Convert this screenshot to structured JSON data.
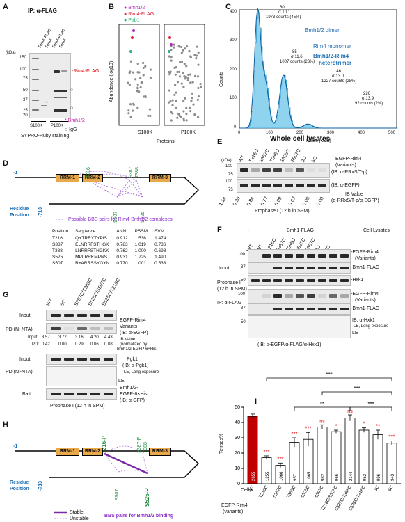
{
  "panels": {
    "A": {
      "label": "A",
      "title": "IP: α-FLAG",
      "kda_label": "(kDa)",
      "markers": [
        "150",
        "100",
        "75",
        "50",
        "37",
        "25",
        "20"
      ],
      "lane_labels": [
        "Rim4-FLAG",
        "Rim4",
        "Rim4-FLAG",
        "Rim4"
      ],
      "fractions": [
        "S100K",
        "P100K"
      ],
      "band_label": "-Rim4-FLAG",
      "legend_star": "* Bmh1/2",
      "legend_circle": "○ IgG",
      "stain": "SYPRO-Ruby staining"
    },
    "B": {
      "label": "B",
      "legend": [
        "Bmh1/2",
        "Rim4-FLAG",
        "Pab1"
      ],
      "legend_colors": [
        "#b22ab4",
        "#e0243a",
        "#2bb673"
      ],
      "ylabel": "Abundance (log10)",
      "xlabel": "Proteins",
      "fractions": [
        "S100K",
        "P100K"
      ]
    },
    "C": {
      "label": "C",
      "xlabel": "Mass [kDa]",
      "ylabel": "Counts",
      "yticks": [
        "0",
        "100",
        "200",
        "300",
        "400"
      ],
      "xticks": [
        "0",
        "100",
        "200",
        "300",
        "400",
        "500"
      ],
      "annotations": {
        "dimer": "Bmh1/2 dimer",
        "monomer": "Rim4 monomer",
        "hetero1": "Bmh1/2-Rim4",
        "hetero2": "heterotrimer",
        "peak1": [
          "60",
          "σ 10.1",
          "1973 counts (45%)"
        ],
        "peak2": [
          "85",
          "σ 11.6",
          "1007 counts (23%)"
        ],
        "peak3": [
          "146",
          "σ 13.0",
          "1227 counts (28%)"
        ],
        "peak4": [
          "226",
          "σ 13.9",
          "92 counts (2%)"
        ]
      }
    },
    "D": {
      "label": "D",
      "domains": [
        "RRM-1",
        "RRM-2",
        "RRM-3"
      ],
      "sites_top": [
        "T216",
        "S387",
        "T388"
      ],
      "sites_bottom": [
        "S507",
        "S525"
      ],
      "start": "1",
      "end": "713",
      "residue": "Residue",
      "position": "Position",
      "legend": "Possible BBS pairs for Rim4-Bmh1/2 complexes",
      "table_headers": [
        "Position",
        "Sequence",
        "ANN",
        "PSSM",
        "SVM"
      ],
      "table_rows": [
        [
          "T216",
          "QYTRRYTYPIS",
          "0.912",
          "1.536",
          "1.474"
        ],
        [
          "S387",
          "ELNRRFSTHGK",
          "0.783",
          "1.019",
          "0.736"
        ],
        [
          "T388",
          "LNRRFSTHGKK",
          "0.762",
          "1.000",
          "0.698"
        ],
        [
          "S525",
          "MPLRRKMPNS",
          "0.931",
          "1.725",
          "1.490"
        ],
        [
          "S507",
          "RYARRSSYGYN",
          "0.770",
          "1.001",
          "0.533"
        ]
      ]
    },
    "E": {
      "label": "E",
      "title": "Whole cell lysates",
      "lanes": [
        "WT",
        "T216C",
        "S387C",
        "T388C",
        "S525C",
        "S507C",
        "3C",
        "5C"
      ],
      "right_label1": "EGFP-Rim4",
      "right_label2": "(Variants)",
      "ib1": "(IB: α-RRxS/T-p)",
      "ib2": "(IB: α-EGFP)",
      "values": [
        "1.14",
        "0.30",
        "0.84",
        "0.77",
        "0.09",
        "0.67",
        "0.00",
        "0.00"
      ],
      "ib_value": "IB Value",
      "ib_value_sub": "(α-RRxS/T-p/α-EGFP)",
      "condition": "Prophase I (12 h in SPM)",
      "markers": [
        "100",
        "75",
        "100",
        "75"
      ],
      "kda": "(kDa)"
    },
    "F": {
      "label": "F",
      "header": "Bmh1-FLAG",
      "dash": "-",
      "lanes": [
        "WT",
        "WT",
        "T216C",
        "S387C",
        "T388C",
        "S525C",
        "S507C",
        "3C",
        "5C"
      ],
      "cell_lysates": "Cell Lysates",
      "input": "Input:",
      "condition1": "Prophase I",
      "condition2": "(12 h in SPM)",
      "ip": "IP: α-FLAG",
      "labels": [
        "-EGFP-Rim4",
        "(Variants)",
        "-Bmh1-FLAG",
        "-Hxk1",
        "-EGFP-Rim4",
        "(Variants)",
        "-Bmh1-FLAG",
        "IB: α-Hxk1",
        "LE, Long exposure",
        "LE"
      ],
      "footer": "(IB: α-EGFP/α-FLAG/α-Hxk1)",
      "markers": [
        "100",
        "37",
        "50",
        "100",
        "37",
        "50"
      ]
    },
    "G": {
      "label": "G",
      "lanes": [
        "WT",
        "5C",
        "S387C/T388C",
        "S525C/S507C",
        "S525C/T216C"
      ],
      "input": "Input:",
      "pd": "PD (Ni-NTA):",
      "input_vals": [
        "3.57",
        "3.72",
        "3.16",
        "4.20",
        "4.43"
      ],
      "pd_vals": [
        "0.42",
        "0.00",
        "0.29",
        "0.06",
        "0.08"
      ],
      "ib_value": "IB Value",
      "normalized": "(normalized by",
      "normalized2": "Bmh1/2-EGFP-6×His)",
      "rim4": "EGFP-Rim4",
      "variants": "Variants",
      "ib_egfp": "(IB: α-EGFP)",
      "pgk1": "Pgk1",
      "ib_pgk1": "(IB: α-Pgk1)",
      "le": "LE",
      "le_long": "LE, Long exposure",
      "bait": "Bait:",
      "bait_label1": "Bmh1/2-",
      "bait_label2": "EGFP-6×His",
      "ib_gfp": "(IB: α-GFP)",
      "condition": "Prophase I (12 h in SPM)",
      "input_short": "Input:",
      "pd_short": "PD:"
    },
    "H": {
      "label": "H",
      "domains": [
        "RRM-1",
        "RRM-2",
        "RRM-3"
      ],
      "sites": [
        "T216-P",
        "S387-P",
        "T388",
        "S507",
        "S525-P"
      ],
      "start": "1",
      "end": "713",
      "residue": "Residue",
      "position": "Position",
      "stable": "Stable",
      "unstable": "Unstable",
      "legend": "BBS pairs for Bmh1/2 binding"
    },
    "I": {
      "label": "I",
      "ylabel": "Tetrads%",
      "yticks": [
        "0",
        "10",
        "20",
        "30",
        "40",
        "50"
      ],
      "cell_label": "Cell #",
      "strain_label": "EGFP-Rim4",
      "strain_label2": "(variants)",
      "sig_top": [
        "***",
        "***",
        "**",
        "***"
      ],
      "ns": "ns"
    }
  },
  "chart_data": {
    "type": "bar",
    "title": "",
    "ylabel": "Tetrads%",
    "ylim": [
      0,
      50
    ],
    "categories": [
      "WT",
      "T216C",
      "S387C",
      "T388C",
      "S525C",
      "S507C",
      "T216C/S525C",
      "S387C/T388C",
      "S525C/T216C",
      "3C",
      "5C"
    ],
    "values": [
      44.0,
      17.0,
      12.0,
      27.0,
      29.0,
      37.0,
      34.0,
      43.0,
      35.0,
      32.0,
      26.5
    ],
    "errors": [
      1.5,
      1.2,
      1.5,
      3.0,
      4.5,
      1.5,
      1.0,
      2.0,
      1.5,
      3.0,
      1.5
    ],
    "cell_counts": [
      "2655",
      "1255",
      "1066",
      "957",
      "1065",
      "982",
      "966",
      "2144",
      "952",
      "996",
      "943"
    ],
    "significance": [
      "",
      "***",
      "***",
      "***",
      "***",
      "ns",
      "*",
      "ns",
      "*",
      "**",
      "***"
    ],
    "colors": {
      "WT": "#c00000",
      "others": "#ffffff"
    }
  }
}
